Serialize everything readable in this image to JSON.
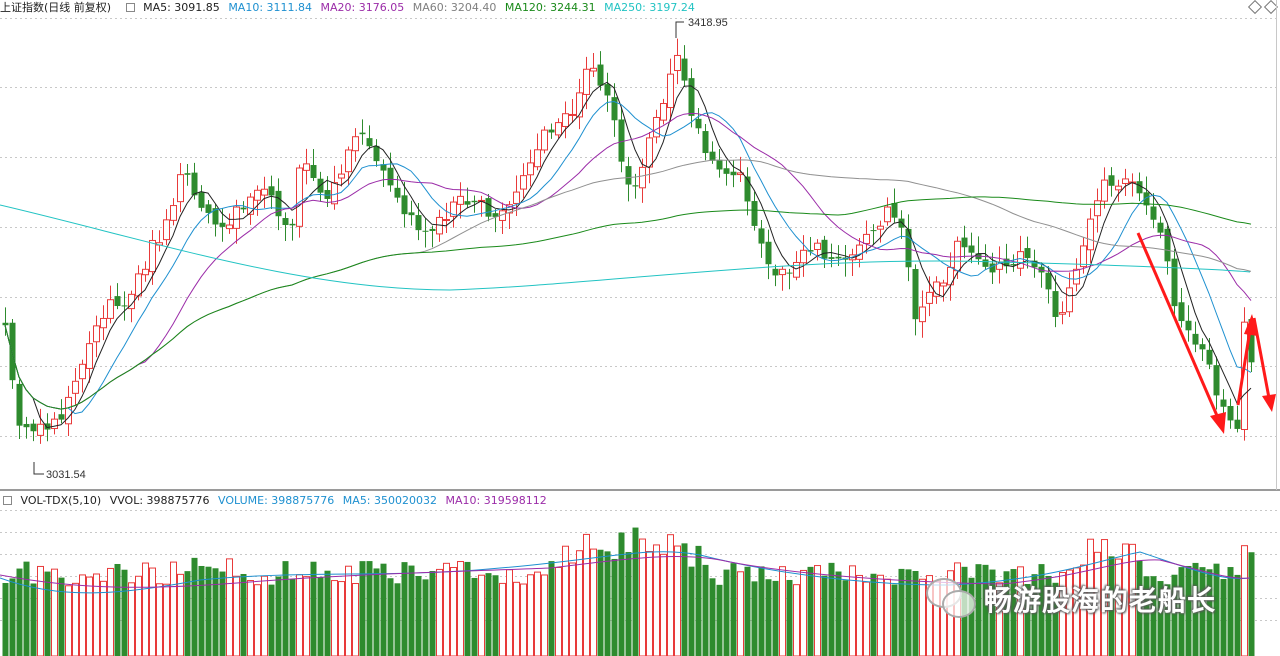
{
  "header": {
    "title": "上证指数(日线 前复权)",
    "indicators": [
      {
        "label": "MA5: 3091.85",
        "color": "#222222"
      },
      {
        "label": "MA10: 3111.84",
        "color": "#1e90d0"
      },
      {
        "label": "MA20: 3176.05",
        "color": "#9b2ca8"
      },
      {
        "label": "MA60: 3204.40",
        "color": "#808080"
      },
      {
        "label": "MA120: 3244.31",
        "color": "#1a8a1a"
      },
      {
        "label": "MA250: 3197.24",
        "color": "#22c3c3"
      }
    ]
  },
  "price_chart": {
    "high_label": "3418.95",
    "low_label": "3031.54",
    "ylim": [
      3000,
      3430
    ]
  },
  "volume_header": {
    "title": "VOL-TDX(5,10)",
    "vvol": "VVOL: 398875776",
    "items": [
      {
        "label": "VOLUME: 398875776",
        "color": "#1e90d0"
      },
      {
        "label": "MA5: 350020032",
        "color": "#1e90d0"
      },
      {
        "label": "MA10: 319598112",
        "color": "#9b2ca8"
      }
    ]
  },
  "watermark": {
    "text": "畅游股海的老船长"
  },
  "colors": {
    "up": "#e83a3a",
    "down": "#2e8b2e",
    "annotation": "#ff1a1a"
  }
}
